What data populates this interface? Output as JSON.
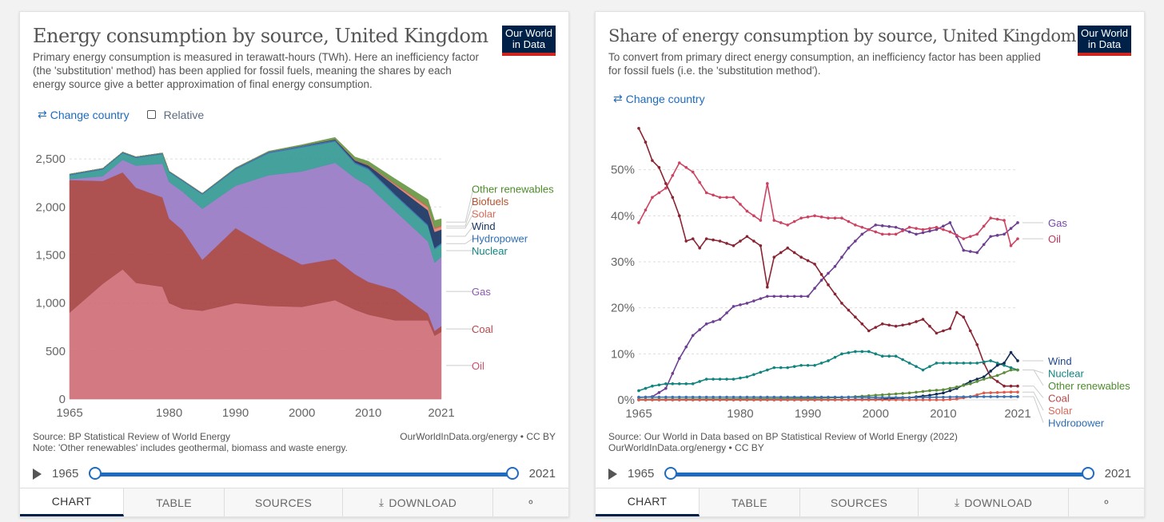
{
  "left": {
    "title": "Energy consumption by source, United Kingdom",
    "subtitle": "Primary energy consumption is measured in terawatt-hours (TWh). Here an inefficiency factor (the 'substitution' method) has been applied for fossil fuels, meaning the shares by each energy source give a better approximation of final energy consumption.",
    "logo": [
      "Our World",
      "in Data"
    ],
    "change_country": "Change country",
    "relative_label": "Relative",
    "source_line1": "Source: BP Statistical Review of World Energy",
    "source_line2": "Note: 'Other renewables' includes geothermal, biomass and waste energy.",
    "cc": "OurWorldInData.org/energy • CC BY",
    "year_start": "1965",
    "year_end": "2021",
    "tabs": [
      "CHART",
      "TABLE",
      "SOURCES",
      "DOWNLOAD",
      ""
    ]
  },
  "right": {
    "title": "Share of energy consumption by source, United Kingdom",
    "subtitle": "To convert from primary direct energy consumption, an inefficiency factor has been applied for fossil fuels (i.e. the 'substitution method').",
    "logo": [
      "Our World",
      "in Data"
    ],
    "change_country": "Change country",
    "source_line1": "Source: Our World in Data based on BP Statistical Review of World Energy (2022)",
    "source_line2": "OurWorldInData.org/energy • CC BY",
    "year_start": "1965",
    "year_end": "2021",
    "tabs": [
      "CHART",
      "TABLE",
      "SOURCES",
      "DOWNLOAD",
      ""
    ]
  },
  "chart_data": [
    {
      "type": "area",
      "stacked": true,
      "title": "Energy consumption by source, United Kingdom",
      "ylim": [
        0,
        2700
      ],
      "yticks": [
        0,
        500,
        1000,
        1500,
        2000,
        2500
      ],
      "ytick_labels": [
        "0",
        "500",
        "1,000",
        "1,500",
        "2,000",
        "2,500"
      ],
      "xlim": [
        1965,
        2021
      ],
      "xticks": [
        1965,
        1980,
        1990,
        2000,
        2010,
        2021
      ],
      "x": [
        1965,
        1970,
        1973,
        1975,
        1979,
        1980,
        1982,
        1985,
        1990,
        1995,
        2000,
        2005,
        2008,
        2010,
        2014,
        2019,
        2020,
        2021
      ],
      "series": [
        {
          "name": "Oil",
          "color": "#d0727c",
          "label_color": "#cc4e6b",
          "values": [
            900,
            1200,
            1350,
            1210,
            1170,
            1000,
            940,
            920,
            1000,
            970,
            960,
            1030,
            930,
            880,
            820,
            820,
            660,
            700
          ]
        },
        {
          "name": "Coal",
          "color": "#a94848",
          "label_color": "#b5484a",
          "values": [
            1380,
            1070,
            1010,
            990,
            930,
            880,
            820,
            530,
            780,
            610,
            440,
            430,
            370,
            340,
            320,
            70,
            50,
            60
          ]
        },
        {
          "name": "Gas",
          "color": "#9b7ec8",
          "label_color": "#8a58b5",
          "values": [
            10,
            50,
            130,
            230,
            350,
            380,
            400,
            530,
            440,
            750,
            970,
            1000,
            1000,
            1000,
            820,
            750,
            710,
            720
          ]
        },
        {
          "name": "Nuclear",
          "color": "#3a9d96",
          "label_color": "#138480",
          "values": [
            40,
            70,
            70,
            80,
            100,
            100,
            110,
            150,
            170,
            230,
            250,
            220,
            150,
            170,
            160,
            160,
            140,
            130
          ]
        },
        {
          "name": "Hydropower",
          "color": "#3a6fb0",
          "label_color": "#2e6eb3",
          "values": [
            12,
            12,
            12,
            12,
            12,
            12,
            12,
            12,
            15,
            15,
            15,
            15,
            15,
            15,
            15,
            15,
            15,
            15
          ]
        },
        {
          "name": "Wind",
          "color": "#1f3a66",
          "label_color": "#16345f",
          "values": [
            0,
            0,
            0,
            0,
            0,
            0,
            0,
            0,
            0,
            1,
            3,
            8,
            20,
            28,
            90,
            150,
            165,
            140
          ]
        },
        {
          "name": "Solar",
          "color": "#e5877a",
          "label_color": "#db6a5a",
          "values": [
            0,
            0,
            0,
            0,
            0,
            0,
            0,
            0,
            0,
            0,
            0,
            0,
            0,
            0,
            10,
            30,
            32,
            30
          ]
        },
        {
          "name": "Biofuels",
          "color": "#c66a4f",
          "label_color": "#b8502d",
          "values": [
            0,
            0,
            0,
            0,
            0,
            0,
            0,
            0,
            0,
            0,
            0,
            1,
            5,
            8,
            10,
            12,
            12,
            12
          ]
        },
        {
          "name": "Other renewables",
          "color": "#6c9a4a",
          "label_color": "#4d8b2b",
          "values": [
            0,
            0,
            0,
            0,
            0,
            0,
            0,
            0,
            3,
            5,
            10,
            20,
            30,
            35,
            50,
            70,
            75,
            70
          ]
        }
      ]
    },
    {
      "type": "line",
      "title": "Share of energy consumption by source, United Kingdom",
      "ylim": [
        0,
        60
      ],
      "yticks": [
        0,
        10,
        20,
        30,
        40,
        50
      ],
      "ytick_labels": [
        "0%",
        "10%",
        "20%",
        "30%",
        "40%",
        "50%"
      ],
      "xlim": [
        1965,
        2021
      ],
      "xticks": [
        1965,
        1980,
        1990,
        2000,
        2010,
        2021
      ],
      "series": [
        {
          "name": "Gas",
          "color": "#6d3e91",
          "label_color": "#7448a6",
          "x": [
            1965,
            1967,
            1969,
            1971,
            1973,
            1975,
            1977,
            1979,
            1981,
            1984,
            1987,
            1990,
            1992,
            1994,
            1996,
            1998,
            2000,
            2003,
            2006,
            2009,
            2011,
            2013,
            2015,
            2017,
            2019,
            2021
          ],
          "values": [
            0.5,
            0.7,
            2.5,
            9,
            14,
            16.5,
            17.5,
            20.3,
            21,
            22.5,
            22.5,
            22.5,
            26,
            29,
            33,
            36,
            38,
            37.5,
            36,
            37,
            38.5,
            32.5,
            32,
            35.5,
            36,
            38.5
          ]
        },
        {
          "name": "Oil",
          "color": "#cd4261",
          "label_color": "#c2375b",
          "x": [
            1965,
            1967,
            1969,
            1971,
            1973,
            1975,
            1977,
            1979,
            1981,
            1983,
            1984,
            1985,
            1987,
            1989,
            1991,
            1993,
            1995,
            1997,
            1999,
            2001,
            2003,
            2005,
            2007,
            2009,
            2011,
            2013,
            2015,
            2017,
            2019,
            2020,
            2021
          ],
          "values": [
            38.5,
            44,
            46,
            51.5,
            49.5,
            45,
            44,
            44,
            41,
            39,
            47,
            39,
            38,
            39.5,
            40,
            39.5,
            39.5,
            38,
            37,
            36,
            36,
            37.5,
            37,
            37.5,
            36.5,
            35,
            36,
            39.5,
            39,
            33.5,
            35
          ]
        },
        {
          "name": "Coal",
          "color": "#8a2432",
          "label_color": "#b5484a",
          "x": [
            1965,
            1966,
            1967,
            1968,
            1969,
            1970,
            1971,
            1972,
            1973,
            1974,
            1975,
            1977,
            1979,
            1981,
            1983,
            1984,
            1985,
            1987,
            1989,
            1991,
            1993,
            1995,
            1997,
            1999,
            2001,
            2003,
            2005,
            2007,
            2009,
            2011,
            2012,
            2013,
            2015,
            2016,
            2017,
            2019,
            2021
          ],
          "values": [
            59,
            56,
            52,
            50.5,
            47,
            44,
            40,
            34.5,
            35,
            33,
            35,
            34.5,
            33.5,
            35.5,
            33.5,
            24.5,
            31,
            33,
            31,
            29.5,
            25,
            21,
            18,
            15,
            16.5,
            16,
            16.5,
            17.5,
            14.5,
            15.5,
            19,
            18,
            12,
            8,
            5,
            3,
            3
          ]
        },
        {
          "name": "Nuclear",
          "color": "#10847e",
          "label_color": "#138480",
          "x": [
            1965,
            1967,
            1969,
            1971,
            1973,
            1975,
            1977,
            1979,
            1981,
            1983,
            1985,
            1987,
            1989,
            1991,
            1993,
            1995,
            1997,
            1999,
            2001,
            2003,
            2005,
            2007,
            2009,
            2011,
            2013,
            2015,
            2017,
            2019,
            2021
          ],
          "values": [
            2,
            3,
            3.5,
            3.5,
            3.5,
            4.5,
            4.5,
            4.5,
            5,
            6,
            7,
            7,
            7.5,
            7.5,
            8.5,
            10,
            10.5,
            10.5,
            9.5,
            9.5,
            8,
            6.5,
            8,
            8,
            8,
            8,
            8.5,
            7.5,
            6.5
          ]
        },
        {
          "name": "Wind",
          "color": "#102b55",
          "label_color": "#1f4690",
          "x": [
            1965,
            1990,
            2000,
            2005,
            2008,
            2010,
            2012,
            2014,
            2016,
            2018,
            2019,
            2020,
            2021
          ],
          "values": [
            0,
            0,
            0.1,
            0.5,
            1,
            1.5,
            2.5,
            4,
            5,
            7.5,
            8,
            10.3,
            8.5
          ]
        },
        {
          "name": "Other renewables",
          "color": "#5b8c3a",
          "label_color": "#4d8b2b",
          "x": [
            1965,
            1990,
            1995,
            2000,
            2005,
            2008,
            2010,
            2012,
            2014,
            2016,
            2018,
            2020,
            2021
          ],
          "values": [
            0.1,
            0.3,
            0.5,
            1,
            1.5,
            2,
            2.2,
            2.8,
            3.5,
            4.5,
            5.3,
            6.5,
            6.5
          ]
        },
        {
          "name": "Solar",
          "color": "#e05b4a",
          "label_color": "#db6a5a",
          "x": [
            1965,
            2010,
            2012,
            2014,
            2016,
            2018,
            2020,
            2021
          ],
          "values": [
            0,
            0,
            0.2,
            0.7,
            1.5,
            1.6,
            1.7,
            1.7
          ]
        },
        {
          "name": "Hydropower",
          "color": "#3a6fb0",
          "label_color": "#2e6eb3",
          "x": [
            1965,
            1975,
            1985,
            1995,
            2005,
            2015,
            2021
          ],
          "values": [
            0.6,
            0.6,
            0.6,
            0.6,
            0.5,
            0.7,
            0.7
          ]
        }
      ]
    }
  ]
}
